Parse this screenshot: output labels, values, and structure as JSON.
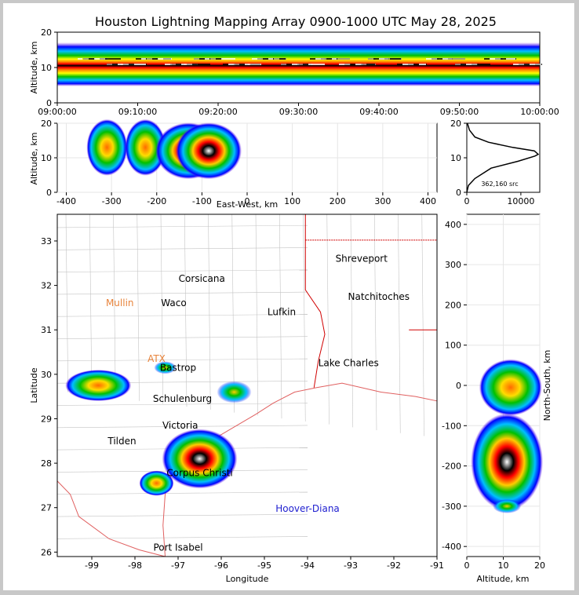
{
  "title": "Houston Lightning Mapping Array 0900-1000 UTC May 28, 2025",
  "chart_data": [
    {
      "id": "time-altitude",
      "type": "heatmap",
      "title": "Houston Lightning Mapping Array 0900-1000 UTC May 28, 2025",
      "ylabel": "Altitude, km",
      "xlabel": "",
      "ylim": [
        0,
        20
      ],
      "yticks": [
        "0",
        "10",
        "20"
      ],
      "xticks": [
        "09:00:00",
        "09:10:00",
        "09:20:00",
        "09:30:00",
        "09:40:00",
        "09:50:00",
        "10:00:00"
      ],
      "note": "continuous source band ~6-16 km, peak density near 12 km throughout the hour"
    },
    {
      "id": "east-west-altitude",
      "type": "heatmap",
      "xlabel": "East-West, km",
      "ylabel": "Altitude, km",
      "xlim": [
        -420,
        420
      ],
      "ylim": [
        0,
        20
      ],
      "xticks": [
        "-400",
        "-300",
        "-200",
        "-100",
        "0",
        "100",
        "200",
        "300",
        "400"
      ],
      "yticks": [
        "0",
        "10",
        "20"
      ],
      "grid": true,
      "cells": [
        {
          "x": -310,
          "alt": 13,
          "level": 2
        },
        {
          "x": -225,
          "alt": 13,
          "level": 2
        },
        {
          "x": -130,
          "alt": 12,
          "level": 4
        },
        {
          "x": -85,
          "alt": 12,
          "level": 3
        }
      ]
    },
    {
      "id": "altitude-histogram",
      "type": "line",
      "xlim": [
        0,
        13500
      ],
      "ylim": [
        0,
        20
      ],
      "xticks": [
        "0",
        "10000"
      ],
      "yticks": [
        "0",
        "10",
        "20"
      ],
      "annotation": "362,160 src",
      "profile": [
        [
          0,
          0
        ],
        [
          300,
          2
        ],
        [
          1500,
          4
        ],
        [
          4500,
          7
        ],
        [
          9500,
          9
        ],
        [
          12600,
          10.5
        ],
        [
          13200,
          11
        ],
        [
          12500,
          12
        ],
        [
          8500,
          13
        ],
        [
          4000,
          14.5
        ],
        [
          1500,
          16
        ],
        [
          500,
          18
        ],
        [
          100,
          20
        ]
      ]
    },
    {
      "id": "map",
      "type": "heatmap",
      "xlabel": "Longitude",
      "ylabel": "Latitude",
      "xlim": [
        -99.8,
        -91
      ],
      "ylim": [
        25.9,
        33.6
      ],
      "xticks": [
        "-99",
        "-98",
        "-97",
        "-96",
        "-95",
        "-94",
        "-93",
        "-92",
        "-91"
      ],
      "yticks": [
        "26",
        "27",
        "28",
        "29",
        "30",
        "31",
        "32",
        "33"
      ],
      "cities": [
        {
          "name": "Shreveport",
          "lon": -92.75,
          "lat": 32.6,
          "color": "#000000"
        },
        {
          "name": "Corsicana",
          "lon": -96.45,
          "lat": 32.15,
          "color": "#000000"
        },
        {
          "name": "Mullin",
          "lon": -98.35,
          "lat": 31.6,
          "color": "#e8843c"
        },
        {
          "name": "Waco",
          "lon": -97.1,
          "lat": 31.6,
          "color": "#000000"
        },
        {
          "name": "Natchitoches",
          "lon": -92.35,
          "lat": 31.75,
          "color": "#000000"
        },
        {
          "name": "Lufkin",
          "lon": -94.6,
          "lat": 31.4,
          "color": "#000000"
        },
        {
          "name": "ATX",
          "lon": -97.5,
          "lat": 30.35,
          "color": "#e8843c"
        },
        {
          "name": "Lake Charles",
          "lon": -93.05,
          "lat": 30.25,
          "color": "#000000"
        },
        {
          "name": "Bastrop",
          "lon": -97.0,
          "lat": 30.15,
          "color": "#000000"
        },
        {
          "name": "Schulenburg",
          "lon": -96.9,
          "lat": 29.45,
          "color": "#000000"
        },
        {
          "name": "Victoria",
          "lon": -96.95,
          "lat": 28.85,
          "color": "#000000"
        },
        {
          "name": "Tilden",
          "lon": -98.3,
          "lat": 28.5,
          "color": "#000000"
        },
        {
          "name": "Corpus Christi",
          "lon": -96.5,
          "lat": 27.78,
          "color": "#000000"
        },
        {
          "name": "Hoover-Diana",
          "lon": -94.0,
          "lat": 26.98,
          "color": "#2020d0"
        },
        {
          "name": "Port Isabel",
          "lon": -97.0,
          "lat": 26.1,
          "color": "#000000"
        }
      ]
    },
    {
      "id": "north-south-altitude",
      "type": "heatmap",
      "xlabel": "Altitude, km",
      "ylabel": "North-South, km",
      "xlim": [
        0,
        20
      ],
      "ylim": [
        -425,
        425
      ],
      "xticks": [
        "0",
        "10",
        "20"
      ],
      "yticks": [
        "-400",
        "-300",
        "-200",
        "-100",
        "0",
        "100",
        "200",
        "300",
        "400"
      ],
      "grid": true
    }
  ],
  "colors": {
    "background": "#c8c8c8",
    "panel": "#ffffff",
    "density_ramp": [
      "#8a2be2",
      "#0000ff",
      "#00bfff",
      "#00c000",
      "#7cfc00",
      "#ffff00",
      "#ff8c00",
      "#ff0000",
      "#000000",
      "#ffffff"
    ],
    "county_lines": "#b4b4b4",
    "state_lines": "#d00000"
  }
}
